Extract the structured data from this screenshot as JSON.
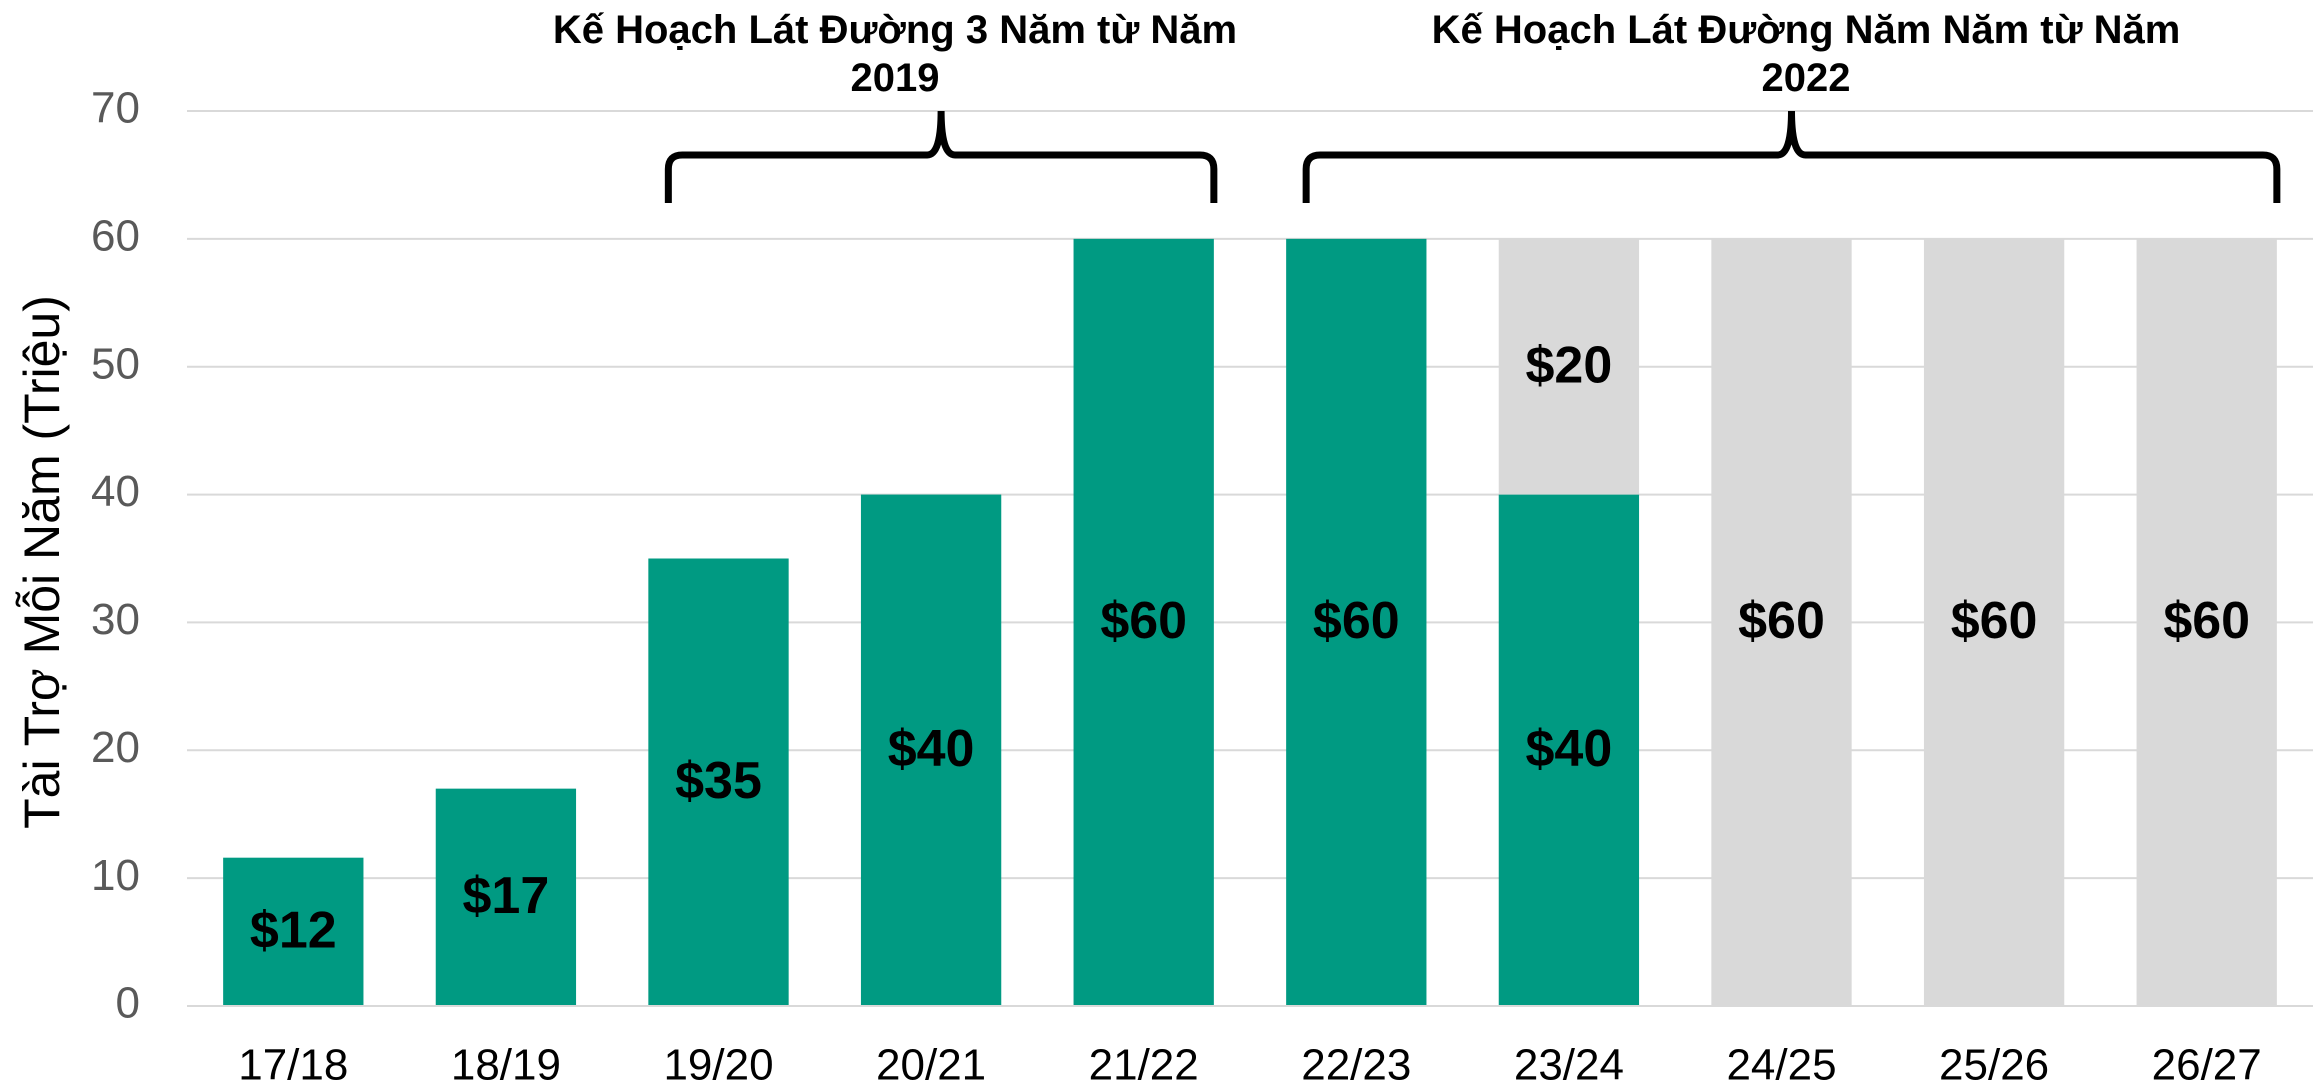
{
  "chart_data": {
    "type": "stacked_bar",
    "y_axis_label": "Tài Trợ Mỗi Năm (Triệu)",
    "annotations": [
      "Kế Hoạch Lát Đường 3 Năm từ Năm\n2019",
      "Kế Hoạch Lát Đường Năm Năm từ Năm\n2022"
    ],
    "categories": [
      "17/18",
      "18/19",
      "19/20",
      "20/21",
      "21/22",
      "22/23",
      "23/24",
      "24/25",
      "25/26",
      "26/27"
    ],
    "series": [
      {
        "color": "#009a82",
        "values": [
          11.6,
          17,
          35,
          40,
          60,
          60,
          40,
          null,
          null,
          null
        ],
        "value_labels": [
          "$12",
          "$17",
          "$35",
          "$40",
          "$60",
          "$60",
          "$40",
          null,
          null,
          null
        ]
      },
      {
        "color": "#d9d9d9",
        "values": [
          null,
          null,
          null,
          null,
          null,
          null,
          20,
          60,
          60,
          60
        ],
        "value_labels": [
          null,
          null,
          null,
          null,
          null,
          null,
          "$20",
          "$60",
          "$60",
          "$60"
        ]
      }
    ],
    "ylim": [
      0,
      70
    ],
    "yticks": [
      0,
      10,
      20,
      30,
      40,
      50,
      60,
      70
    ],
    "grid": true
  }
}
